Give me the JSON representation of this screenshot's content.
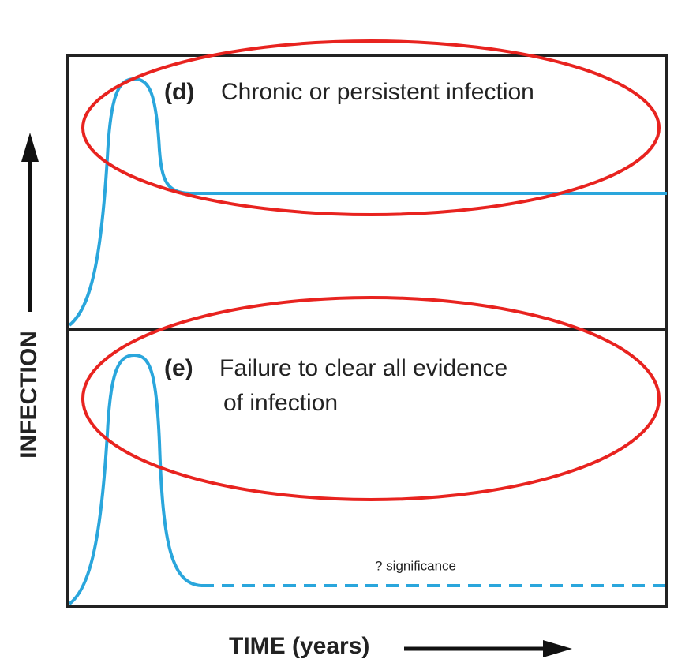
{
  "panels": [
    {
      "letter": "(d)",
      "lines": [
        "Chronic or persistent infection"
      ]
    },
    {
      "letter": "(e)",
      "lines": [
        "Failure to clear all evidence",
        "of infection"
      ],
      "note": "? significance"
    }
  ],
  "axes": {
    "y_label": "INFECTION",
    "x_label": "TIME (years)"
  }
}
